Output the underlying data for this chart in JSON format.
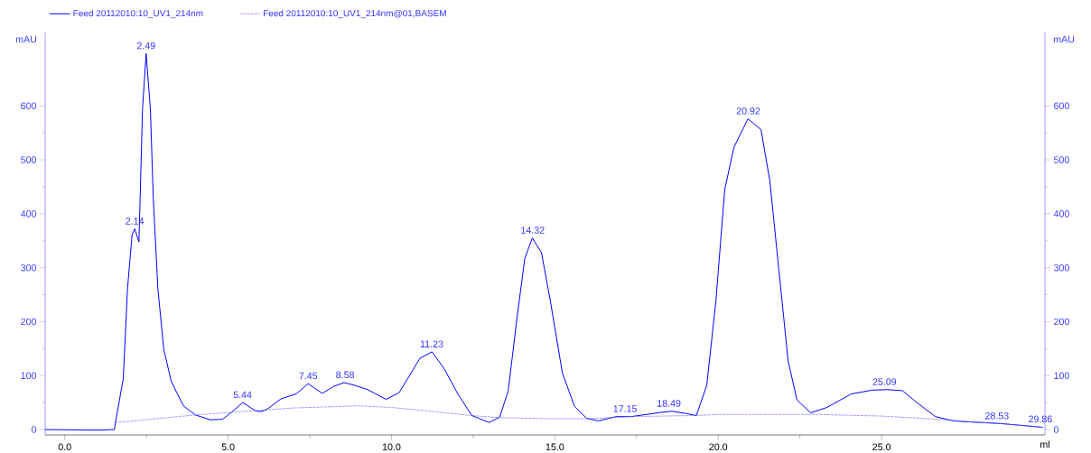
{
  "chart_data": {
    "type": "line",
    "xlabel": "ml",
    "ylabel": "mAU",
    "y2label": "mAU",
    "legend": "top",
    "marker": "none",
    "grid": false,
    "xlim": [
      -0.6,
      30.0
    ],
    "ylim": [
      -10,
      736
    ],
    "y2lim": [
      -10,
      736
    ],
    "xticks": [
      {
        "value": 0,
        "label": "0.0"
      },
      {
        "value": 5,
        "label": "5.0"
      },
      {
        "value": 10,
        "label": "10.0"
      },
      {
        "value": 15,
        "label": "15.0"
      },
      {
        "value": 20,
        "label": "20.0"
      },
      {
        "value": 25,
        "label": "25.0"
      }
    ],
    "yticks": [
      0,
      100,
      200,
      300,
      400,
      500,
      600
    ],
    "y2ticks": [
      0,
      100,
      200,
      300,
      400,
      500,
      600
    ],
    "series": [
      {
        "name": "Feed 20112010:10_UV1_214nm",
        "color": "#0000ff",
        "line_style": "solid",
        "x": [
          -0.6,
          1.0,
          1.52,
          1.55,
          1.79,
          1.92,
          2.06,
          2.14,
          2.27,
          2.38,
          2.49,
          2.62,
          2.71,
          2.85,
          3.03,
          3.26,
          3.63,
          4.0,
          4.46,
          4.83,
          5.1,
          5.45,
          5.83,
          6.0,
          6.2,
          6.62,
          7.08,
          7.45,
          7.88,
          8.23,
          8.55,
          8.87,
          9.27,
          9.83,
          10.23,
          10.87,
          11.24,
          11.61,
          12.04,
          12.46,
          12.99,
          13.31,
          13.57,
          13.85,
          14.08,
          14.31,
          14.59,
          14.86,
          15.23,
          15.6,
          15.97,
          16.33,
          16.88,
          17.34,
          18.27,
          18.59,
          19.0,
          19.33,
          19.65,
          19.93,
          20.2,
          20.48,
          20.91,
          21.31,
          21.58,
          21.86,
          22.14,
          22.41,
          22.83,
          23.33,
          24.07,
          24.71,
          25.17,
          25.64,
          26.1,
          26.65,
          27.2,
          27.75,
          28.67,
          29.78,
          29.94
        ],
        "values": [
          0,
          -1,
          0,
          13,
          94,
          261,
          361,
          372,
          348,
          595,
          697,
          595,
          428,
          261,
          149,
          89,
          44,
          27,
          18,
          19,
          32,
          50,
          35,
          33,
          38,
          57,
          66,
          85,
          67,
          80,
          87,
          82,
          74,
          56,
          68,
          132,
          144,
          113,
          65,
          26,
          13,
          23,
          71,
          211,
          317,
          355,
          328,
          239,
          105,
          43,
          21,
          16,
          24,
          24,
          32,
          34,
          30,
          26,
          82,
          239,
          445,
          523,
          576,
          556,
          461,
          294,
          127,
          55,
          31,
          41,
          66,
          73,
          74,
          72,
          49,
          24,
          16,
          14,
          11,
          5,
          4
        ]
      },
      {
        "name": "Feed 20112010:10_UV1_214nm@01,BASEM",
        "color": "#7070ff",
        "line_style": "dashed",
        "x": [
          1.55,
          4.0,
          5.1,
          7.0,
          9.0,
          10.0,
          11.0,
          12.46,
          13.3,
          15.0,
          16.0,
          17.3,
          19.3,
          20.0,
          23.0,
          25.0,
          27.0,
          27.75,
          28.67,
          29.94
        ],
        "values": [
          13,
          27,
          32,
          40,
          44,
          41,
          35,
          26,
          22,
          20,
          20,
          24,
          26,
          28,
          28,
          25,
          18,
          14,
          11,
          4
        ]
      }
    ],
    "annotations": [
      {
        "text": "2.14",
        "x": 2.14,
        "y": 372
      },
      {
        "text": "2.49",
        "x": 2.49,
        "y": 697
      },
      {
        "text": "5.44",
        "x": 5.44,
        "y": 50
      },
      {
        "text": "7.45",
        "x": 7.45,
        "y": 85
      },
      {
        "text": "8.58",
        "x": 8.58,
        "y": 87
      },
      {
        "text": "11.23",
        "x": 11.23,
        "y": 144
      },
      {
        "text": "14.32",
        "x": 14.32,
        "y": 355
      },
      {
        "text": "17.15",
        "x": 17.15,
        "y": 24
      },
      {
        "text": "18.49",
        "x": 18.49,
        "y": 34
      },
      {
        "text": "20.92",
        "x": 20.92,
        "y": 576
      },
      {
        "text": "25.09",
        "x": 25.09,
        "y": 74
      },
      {
        "text": "28.53",
        "x": 28.53,
        "y": 11
      },
      {
        "text": "29.86",
        "x": 29.86,
        "y": 5
      }
    ]
  }
}
